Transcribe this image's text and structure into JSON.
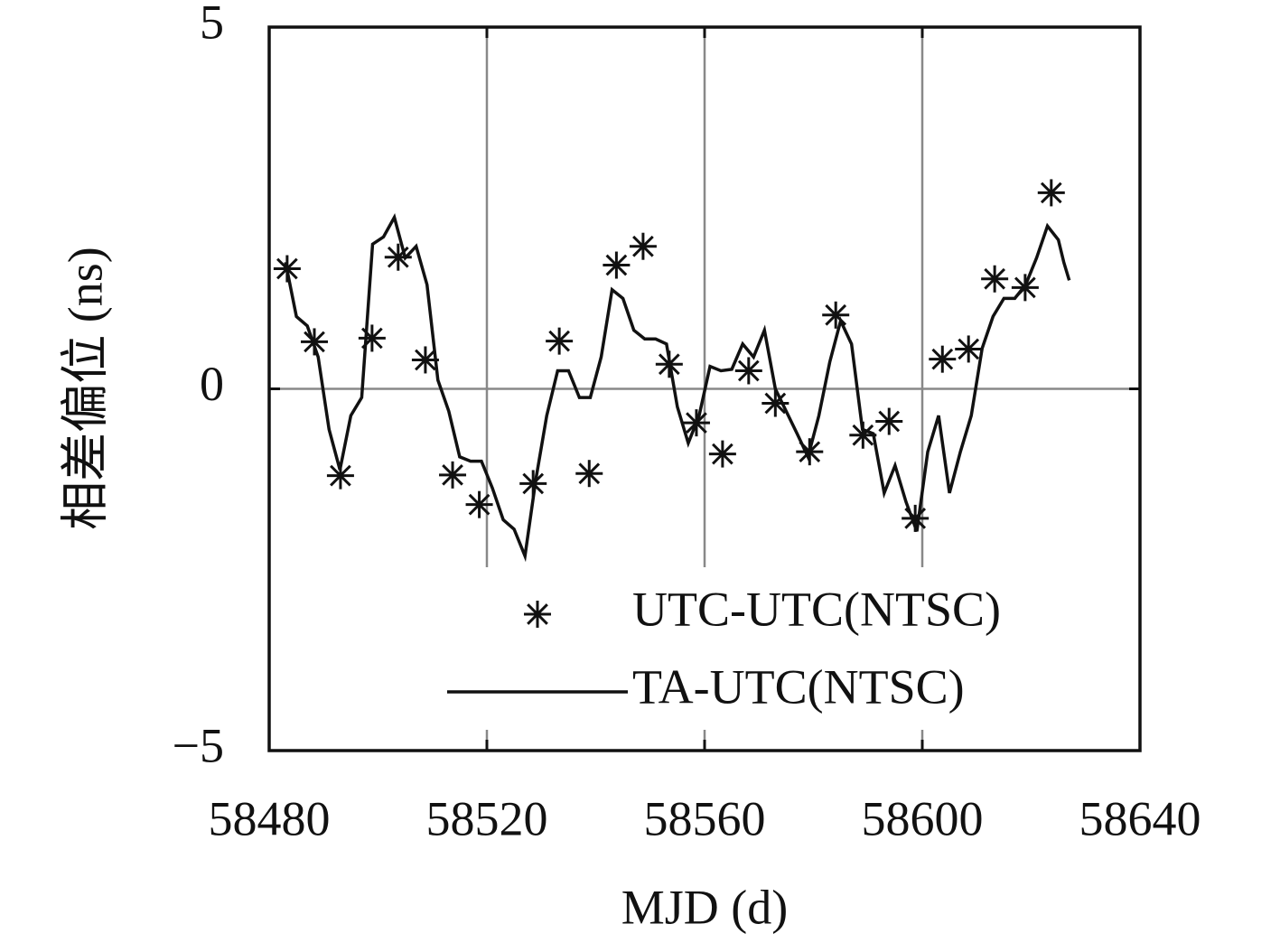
{
  "chart_data": {
    "type": "scatter",
    "xlabel": "MJD (d)",
    "ylabel": "相差偏位 (ns)",
    "xlim": [
      58480,
      58640
    ],
    "xticks": [
      58480,
      58520,
      58560,
      58600,
      58640
    ],
    "ylim": [
      -5,
      5
    ],
    "yticks": [
      {
        "value": -5,
        "label": "−5"
      },
      0,
      5
    ],
    "grid": true,
    "legend": "lower right",
    "series": [
      {
        "name": "UTC-UTC(NTSC)",
        "type": "scatter",
        "color": "#111111",
        "x": [
          58483.3,
          58488.3,
          58493.1,
          58498.9,
          58503.7,
          58508.7,
          58513.7,
          58518.6,
          58528.5,
          58533.3,
          58538.8,
          58543.8,
          58548.7,
          58553.5,
          58558.5,
          58563.3,
          58568.1,
          58573.0,
          58579.3,
          58584.1,
          58589.1,
          58593.9,
          58598.7,
          58603.7,
          58608.5,
          58613.3,
          58618.9,
          58623.7
        ],
        "values": [
          1.66,
          0.65,
          -1.2,
          0.7,
          1.82,
          0.4,
          -1.19,
          -1.6,
          -1.31,
          0.66,
          -1.17,
          1.71,
          1.97,
          0.34,
          -0.47,
          -0.9,
          0.25,
          -0.2,
          -0.87,
          1.02,
          -0.64,
          -0.45,
          -1.79,
          0.41,
          0.55,
          1.52,
          1.4,
          2.71
        ]
      },
      {
        "name": "TA-UTC(NTSC)",
        "type": "line",
        "color": "#111111",
        "x": [
          58483,
          58485,
          58487,
          58489,
          58491,
          58493,
          58495,
          58497,
          58499,
          58501,
          58503,
          58505,
          58507,
          58509,
          58511,
          58513,
          58515,
          58517,
          58519,
          58521,
          58523,
          58525,
          58527,
          58529,
          58531,
          58533,
          58535,
          58537,
          58539,
          58541,
          58543,
          58545,
          58547,
          58549,
          58551,
          58553,
          58555,
          58557,
          58559,
          58561,
          58563,
          58565,
          58567,
          58569,
          58571,
          58573,
          58575,
          58577,
          58579,
          58581,
          58583,
          58585,
          58587,
          58589,
          58591,
          58593,
          58595,
          58597,
          58599,
          58601,
          58603,
          58605,
          58607,
          58609,
          58611,
          58613,
          58615,
          58617,
          58619,
          58621,
          58623,
          58625,
          58626,
          58627
        ],
        "values": [
          1.75,
          1.0,
          0.87,
          0.44,
          -0.56,
          -1.12,
          -0.37,
          -0.12,
          2.0,
          2.1,
          2.37,
          1.81,
          1.97,
          1.44,
          0.12,
          -0.31,
          -0.94,
          -1.0,
          -1.0,
          -1.37,
          -1.81,
          -1.94,
          -2.31,
          -1.25,
          -0.37,
          0.25,
          0.25,
          -0.12,
          -0.12,
          0.44,
          1.37,
          1.25,
          0.81,
          0.69,
          0.69,
          0.62,
          -0.25,
          -0.75,
          -0.37,
          0.31,
          0.25,
          0.27,
          0.62,
          0.44,
          0.81,
          0.0,
          -0.31,
          -0.62,
          -0.94,
          -0.37,
          0.37,
          0.94,
          0.62,
          -0.56,
          -0.62,
          -1.44,
          -1.06,
          -1.56,
          -1.97,
          -0.87,
          -0.37,
          -1.44,
          -0.87,
          -0.37,
          0.56,
          1.0,
          1.25,
          1.25,
          1.44,
          1.81,
          2.25,
          2.06,
          1.75,
          1.5
        ]
      }
    ]
  }
}
